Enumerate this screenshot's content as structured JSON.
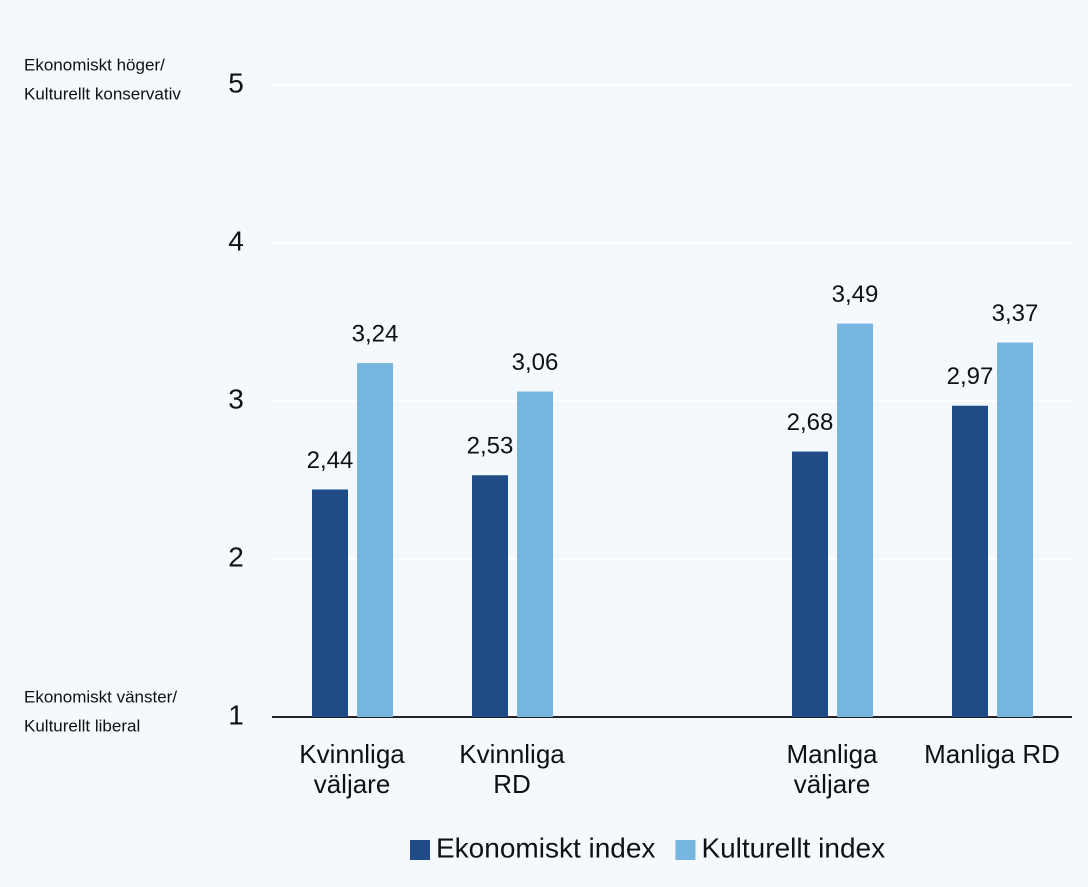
{
  "chart_data": {
    "type": "bar",
    "y_top_label": [
      "Ekonomiskt höger/",
      "Kulturellt konservativ"
    ],
    "y_bottom_label": [
      "Ekonomiskt vänster/",
      "Kulturellt liberal"
    ],
    "categories": [
      "Kvinnliga väljare",
      "Kvinnliga RD",
      null,
      "Manliga väljare",
      "Manliga RD"
    ],
    "series": [
      {
        "name": "Ekonomiskt index",
        "color": "#1f4b87",
        "values": [
          2.44,
          2.53,
          null,
          2.68,
          2.97
        ],
        "value_labels": [
          "2,44",
          "2,53",
          null,
          "2,68",
          "2,97"
        ]
      },
      {
        "name": "Kulturellt index",
        "color": "#77b6e0",
        "values": [
          3.24,
          3.06,
          null,
          3.49,
          3.37
        ],
        "value_labels": [
          "3,24",
          "3,06",
          null,
          "3,49",
          "3,37"
        ]
      }
    ],
    "ylim": [
      1,
      5
    ],
    "yticks": [
      1,
      2,
      3,
      4,
      5
    ],
    "grid": true,
    "legend": "bottom"
  }
}
